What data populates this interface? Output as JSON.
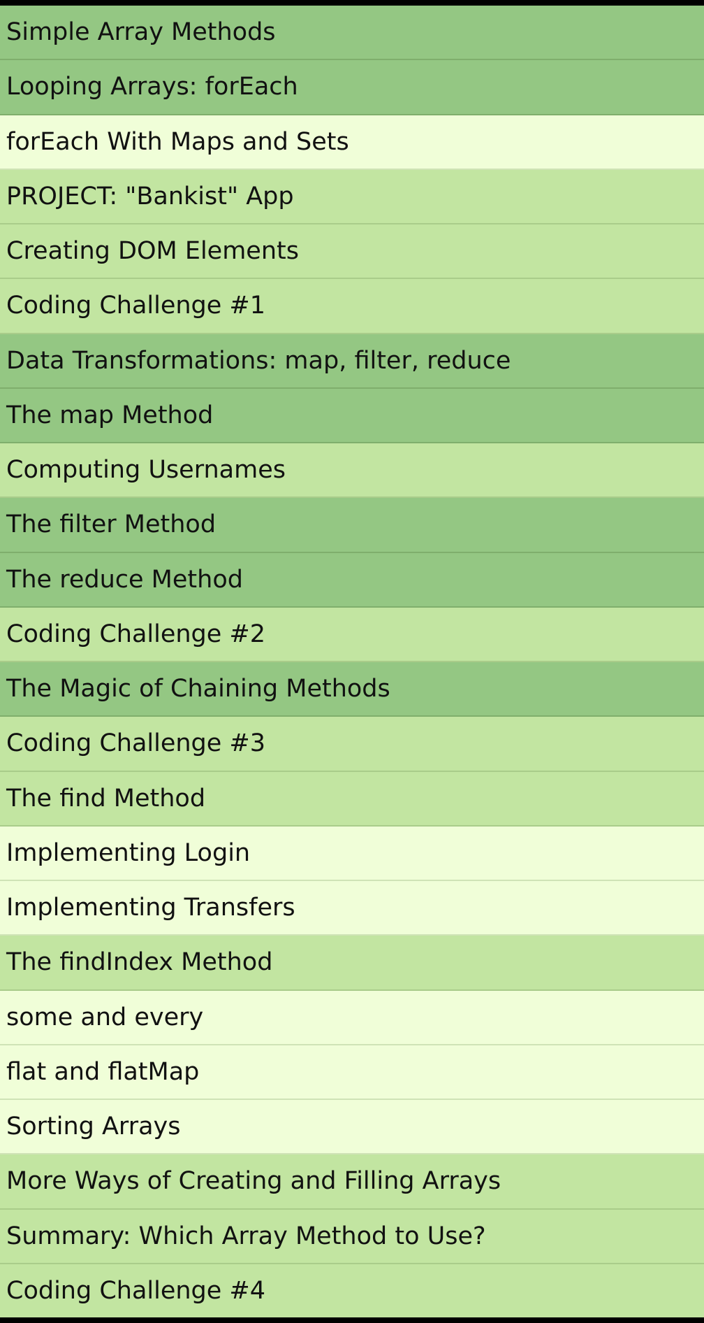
{
  "palette": {
    "dark": "#94c783",
    "mid": "#c2e5a1",
    "light": "#f0fed8",
    "frame": "#000000"
  },
  "lectures": [
    {
      "label": "Simple Array Methods",
      "shade": "dark"
    },
    {
      "label": "Looping Arrays: forEach",
      "shade": "dark"
    },
    {
      "label": "forEach With Maps and Sets",
      "shade": "light"
    },
    {
      "label": "PROJECT: \"Bankist\" App",
      "shade": "mid"
    },
    {
      "label": "Creating DOM Elements",
      "shade": "mid"
    },
    {
      "label": "Coding Challenge #1",
      "shade": "mid"
    },
    {
      "label": "Data Transformations: map, filter, reduce",
      "shade": "dark"
    },
    {
      "label": "The map Method",
      "shade": "dark"
    },
    {
      "label": "Computing Usernames",
      "shade": "mid"
    },
    {
      "label": "The filter Method",
      "shade": "dark"
    },
    {
      "label": "The reduce Method",
      "shade": "dark"
    },
    {
      "label": "Coding Challenge #2",
      "shade": "mid"
    },
    {
      "label": "The Magic of Chaining Methods",
      "shade": "dark"
    },
    {
      "label": "Coding Challenge #3",
      "shade": "mid"
    },
    {
      "label": "The find Method",
      "shade": "mid"
    },
    {
      "label": "Implementing Login",
      "shade": "light"
    },
    {
      "label": "Implementing Transfers",
      "shade": "light"
    },
    {
      "label": "The findIndex Method",
      "shade": "mid"
    },
    {
      "label": "some and every",
      "shade": "light"
    },
    {
      "label": "flat and flatMap",
      "shade": "light"
    },
    {
      "label": "Sorting Arrays",
      "shade": "light"
    },
    {
      "label": "More Ways of Creating and Filling Arrays",
      "shade": "mid"
    },
    {
      "label": "Summary: Which Array Method to Use?",
      "shade": "mid"
    },
    {
      "label": "Coding Challenge #4",
      "shade": "mid"
    }
  ]
}
